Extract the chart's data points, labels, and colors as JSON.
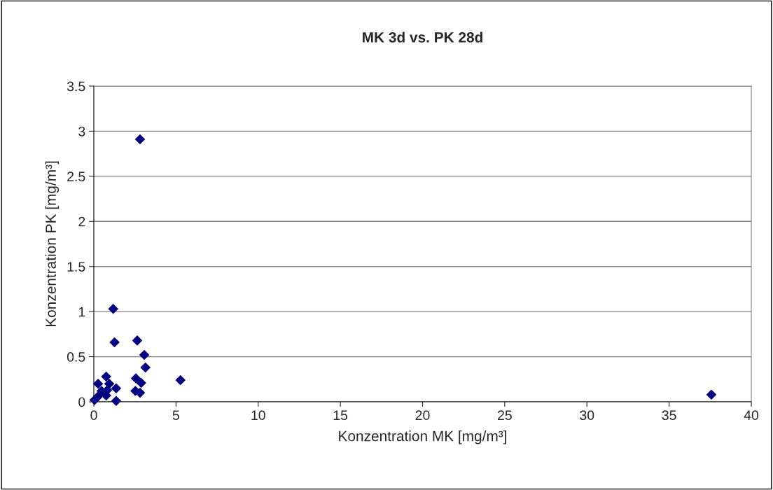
{
  "chart_data": {
    "type": "scatter",
    "title": "MK 3d vs. PK 28d",
    "xlabel": "Konzentration MK [mg/m³]",
    "ylabel": "Konzentration PK [mg/m³]",
    "series": [
      {
        "color": "#000080",
        "x": [
          1.18,
          1.26,
          2.64,
          3.07,
          3.14,
          5.27,
          2.56,
          2.88,
          2.53,
          2.81,
          1.36,
          1.36,
          0.75,
          0.26,
          0.94,
          0.47,
          0.75,
          0.82,
          0.04,
          0.26,
          2.81,
          37.57
        ],
        "values": [
          1.03,
          0.66,
          0.68,
          0.52,
          0.38,
          0.24,
          0.26,
          0.21,
          0.12,
          0.1,
          0.15,
          0.01,
          0.28,
          0.2,
          0.2,
          0.12,
          0.07,
          0.13,
          0.02,
          0.06,
          2.91,
          0.08
        ]
      }
    ],
    "xlim": [
      0,
      40
    ],
    "xticks": [
      0,
      5,
      10,
      15,
      20,
      25,
      30,
      35,
      40
    ],
    "ylim": [
      0,
      3.5
    ],
    "yticks": [
      0,
      0.5,
      1,
      1.5,
      2,
      2.5,
      3,
      3.5
    ],
    "grid": "y",
    "marker": "diamond"
  }
}
